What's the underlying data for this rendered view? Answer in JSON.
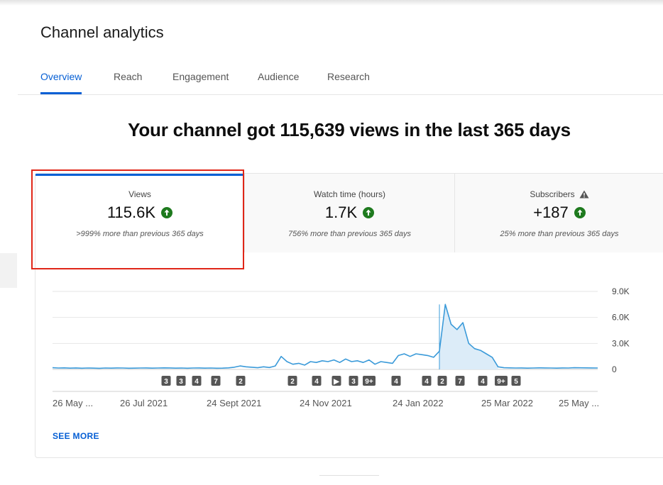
{
  "page": {
    "title": "Channel analytics"
  },
  "tabs": [
    "Overview",
    "Reach",
    "Engagement",
    "Audience",
    "Research"
  ],
  "headline": "Your channel got 115,639 views in the last 365 days",
  "metrics": [
    {
      "label": "Views",
      "value": "115.6K",
      "trend": "up",
      "sub": ">999% more than previous 365 days"
    },
    {
      "label": "Watch time (hours)",
      "value": "1.7K",
      "trend": "up",
      "sub": "756% more than previous 365 days"
    },
    {
      "label": "Subscribers",
      "value": "+187",
      "trend": "up",
      "sub": "25% more than previous 365 days",
      "warning": true
    }
  ],
  "colors": {
    "accent": "#065fd4",
    "up": "#1e7a1e",
    "highlight": "#e02618",
    "line": "#3a9ad9"
  },
  "chart_data": {
    "type": "line",
    "series": [
      {
        "values": [
          200,
          160,
          180,
          150,
          170,
          140,
          160,
          150,
          130,
          160,
          150,
          170,
          160,
          140,
          150,
          160,
          170,
          150,
          160,
          180,
          170,
          150,
          160,
          140,
          160,
          170,
          150,
          160,
          140,
          150,
          180,
          250,
          400,
          300,
          250,
          200,
          300,
          220,
          400,
          1500,
          900,
          600,
          700,
          500,
          900,
          800,
          1000,
          900,
          1100,
          800,
          1200,
          900,
          1000,
          800,
          1100,
          600,
          900,
          800,
          700,
          1600,
          1800,
          1500,
          1800,
          1700,
          1600,
          1400,
          2100,
          7500,
          5200,
          4600,
          5400,
          3000,
          2400,
          2200,
          1800,
          1400,
          300,
          200,
          180,
          160,
          170,
          150,
          160,
          180,
          170,
          160,
          150,
          170,
          160,
          200,
          190,
          180,
          170,
          160
        ]
      }
    ],
    "x_tick_labels": [
      "26 May ...",
      "26 Jul 2021",
      "24 Sept 2021",
      "24 Nov 2021",
      "24 Jan 2022",
      "25 Mar 2022",
      "25 May ..."
    ],
    "y_tick_labels": [
      "9.0K",
      "6.0K",
      "3.0K",
      "0"
    ],
    "ylim": [
      0,
      9000
    ],
    "markers": [
      "3",
      "3",
      "4",
      "7",
      "2",
      "2",
      "4",
      "▶",
      "3",
      "9+",
      "4",
      "4",
      "2",
      "7",
      "4",
      "9+",
      "5"
    ],
    "grid": true
  },
  "see_more": "SEE MORE"
}
